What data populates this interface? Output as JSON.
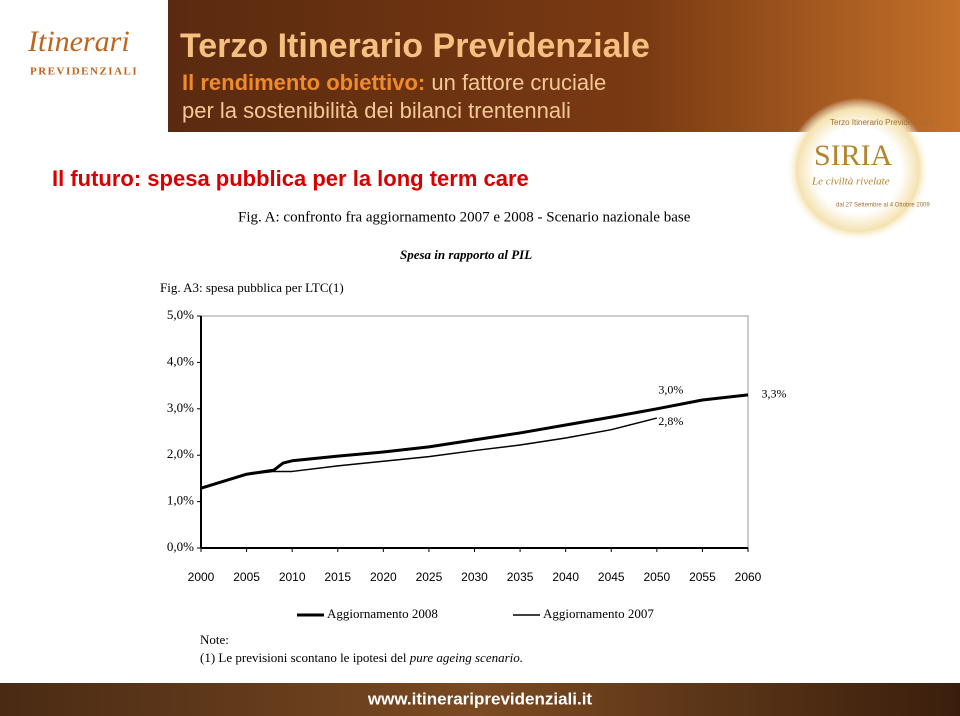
{
  "header": {
    "logo_script": "Itinerari",
    "logo_caps": "PREVIDENZIALI",
    "banner_title": "Terzo Itinerario Previdenziale",
    "banner_line1_bold": "Il rendimento obiettivo:",
    "banner_line1_rest": "un fattore cruciale",
    "banner_line2": "per la sostenibilità dei bilanci trentennali"
  },
  "badge": {
    "top": "Terzo Itinerario Previdenziale",
    "name": "SIRIA",
    "subtitle": "Le civiltà rivelate",
    "dates": "dal 27 Settembre al 4 Ottobre 2009"
  },
  "slide_title": "Il futuro: spesa pubblica per la long term care",
  "chart_data": {
    "type": "line",
    "title": "Fig. A: confronto fra aggiornamento 2007 e 2008 - Scenario nazionale base",
    "subtitle": "Spesa in rapporto al PIL",
    "figure_label": "Fig. A3: spesa pubblica per LTC(1)",
    "x": [
      2000,
      2005,
      2008,
      2009,
      2010,
      2015,
      2020,
      2025,
      2030,
      2035,
      2040,
      2045,
      2050,
      2055,
      2060
    ],
    "series": [
      {
        "name": "Aggiornamento 2008",
        "color": "#000000",
        "values": [
          1.29,
          1.59,
          1.68,
          1.83,
          1.88,
          1.98,
          2.07,
          2.18,
          2.33,
          2.48,
          2.65,
          2.82,
          3.0,
          3.19,
          3.3
        ],
        "value_labels": [
          null,
          null,
          null,
          null,
          null,
          null,
          null,
          null,
          null,
          null,
          null,
          null,
          "3,0%",
          null,
          "3,3%"
        ]
      },
      {
        "name": "Aggiornamento 2007",
        "color": "#000000",
        "values": [
          1.29,
          1.58,
          1.65,
          1.65,
          1.65,
          1.77,
          1.87,
          1.97,
          2.1,
          2.22,
          2.37,
          2.55,
          2.8,
          null,
          null
        ],
        "value_labels": [
          null,
          null,
          null,
          null,
          null,
          null,
          null,
          null,
          null,
          null,
          null,
          null,
          "2,8%",
          null,
          null
        ]
      }
    ],
    "xlim": [
      2000,
      2060
    ],
    "xticks": [
      2000,
      2005,
      2010,
      2015,
      2020,
      2025,
      2030,
      2035,
      2040,
      2045,
      2050,
      2055,
      2060
    ],
    "ylim": [
      0,
      5
    ],
    "yticks": [
      {
        "value": 0,
        "label": "0,0%"
      },
      {
        "value": 1,
        "label": "1,0%"
      },
      {
        "value": 2,
        "label": "2,0%"
      },
      {
        "value": 3,
        "label": "3,0%"
      },
      {
        "value": 4,
        "label": "4,0%"
      },
      {
        "value": 5,
        "label": "5,0%"
      }
    ],
    "grid": false
  },
  "note": {
    "heading": "Note:",
    "text": "(1) Le previsioni scontano le ipotesi del",
    "italic": "pure ageing scenario."
  },
  "footer": "www.itinerariprevidenziali.it"
}
